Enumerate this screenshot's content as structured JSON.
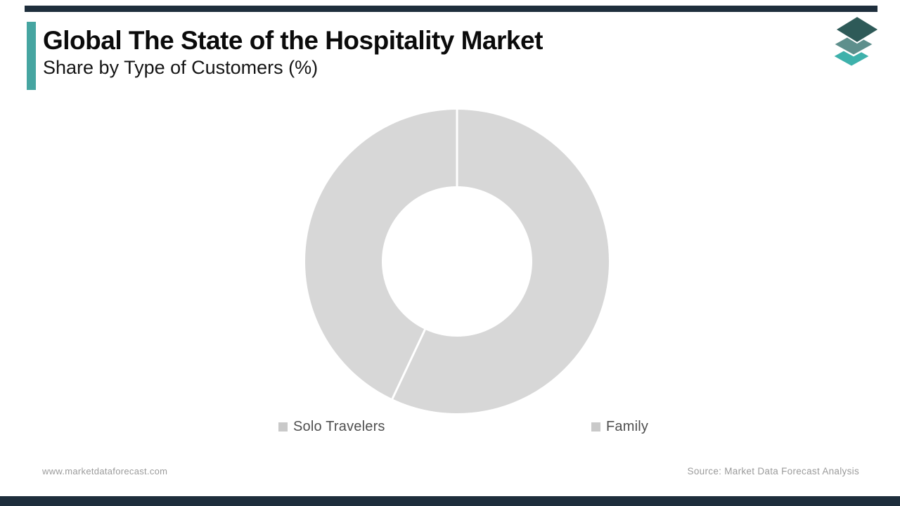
{
  "theme": {
    "band_color": "#1e2e3c",
    "accent_color": "#46a5a1",
    "background": "#ffffff"
  },
  "header": {
    "title": "Global The State of the Hospitality Market",
    "subtitle": "Share by Type of Customers (%)"
  },
  "logo": {
    "layers": [
      {
        "name": "bottom-layer",
        "color": "#3eb1ab"
      },
      {
        "name": "middle-layer",
        "color": "#5e8f8c"
      },
      {
        "name": "top-layer",
        "color": "#2e5a58"
      }
    ]
  },
  "chart_data": {
    "type": "pie",
    "subtype": "donut",
    "title": "Global The State of the Hospitality Market",
    "subtitle": "Share by Type of Customers (%)",
    "categories": [
      "Solo Travelers",
      "Family"
    ],
    "values": [
      57,
      43
    ],
    "unit": "%",
    "slice_colors": [
      "#d7d7d7",
      "#d7d7d7"
    ],
    "divider_color": "#ffffff",
    "start_angle_deg": 0,
    "legend_position": "bottom",
    "data_labels": false
  },
  "legend": {
    "items": [
      {
        "label": "Solo Travelers",
        "swatch_color": "#c9c9c9"
      },
      {
        "label": "Family",
        "swatch_color": "#c9c9c9"
      }
    ]
  },
  "footer": {
    "website": "www.marketdataforecast.com",
    "source": "Source: Market Data Forecast Analysis"
  }
}
